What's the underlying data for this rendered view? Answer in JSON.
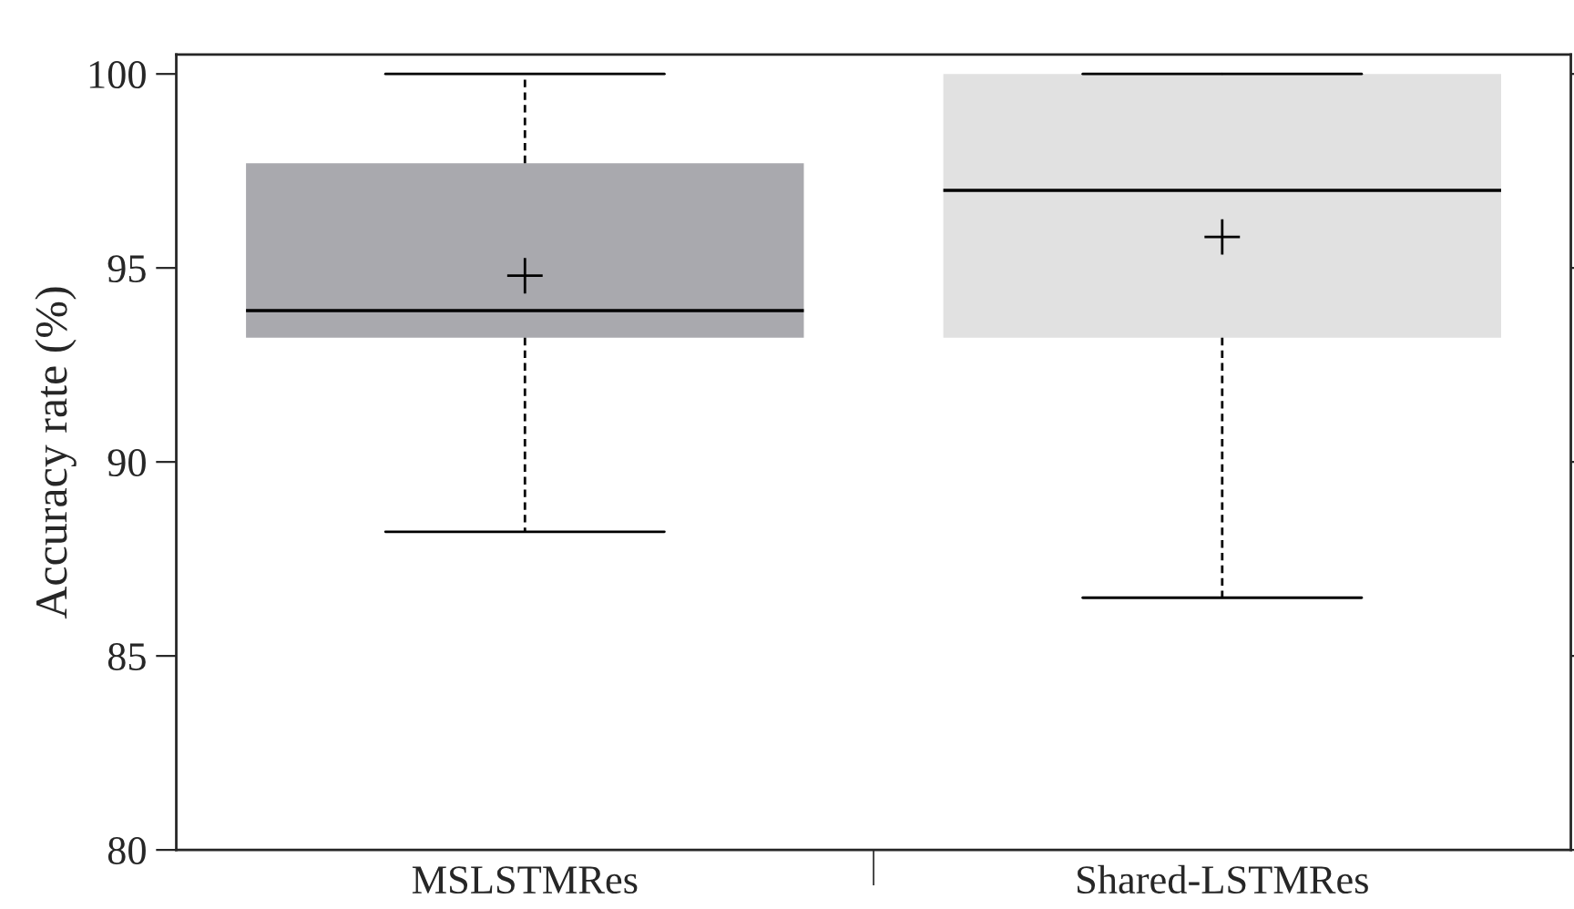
{
  "chart_data": {
    "type": "box",
    "ylabel": "Accuracy rate (%)",
    "categories": [
      "MSLSTMRes",
      "Shared-LSTMRes"
    ],
    "series": [
      {
        "colors": [
          "#a9a9ae",
          "#e1e1e1"
        ],
        "boxes": [
          {
            "low": 88.2,
            "q1": 93.2,
            "median": 93.9,
            "q3": 97.7,
            "high": 100,
            "mean": 94.8
          },
          {
            "low": 86.5,
            "q1": 93.2,
            "median": 97.0,
            "q3": 100,
            "high": 100,
            "mean": 95.8
          }
        ]
      }
    ],
    "ylim": [
      80,
      100.5
    ],
    "yticks": [
      80,
      85,
      90,
      95,
      100
    ],
    "grid": false,
    "marker": "cross",
    "line_style": "dashed"
  }
}
